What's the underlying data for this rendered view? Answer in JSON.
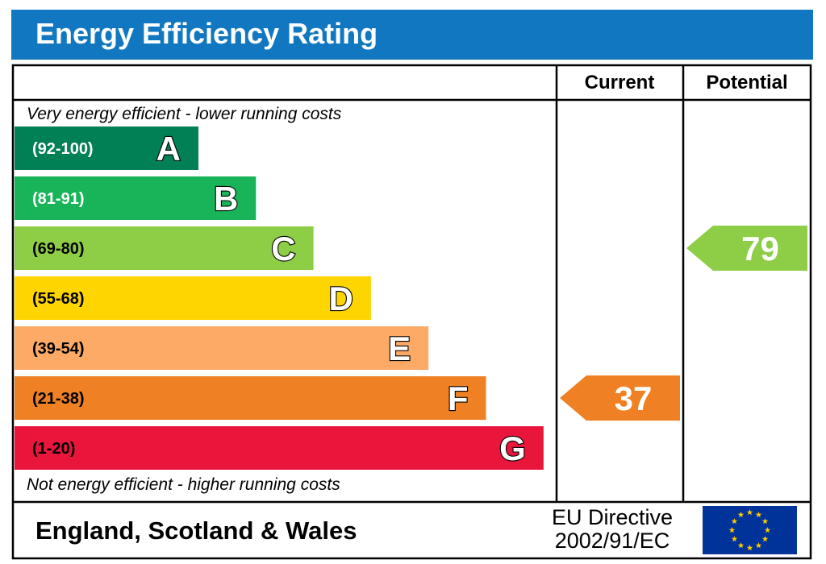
{
  "title": "Energy Efficiency Rating",
  "colors": {
    "header_bg": "#1077c0",
    "eu_flag_bg": "#003399",
    "eu_star": "#ffcc00"
  },
  "columns": {
    "current": "Current",
    "potential": "Potential"
  },
  "top_caption": "Very energy efficient - lower running costs",
  "bottom_caption": "Not energy efficient - higher running costs",
  "footer": {
    "region": "England, Scotland & Wales",
    "directive_line1": "EU Directive",
    "directive_line2": "2002/91/EC",
    "flag_icon": "eu-flag-icon"
  },
  "chart_data": {
    "type": "bar",
    "title": "Energy Efficiency Rating",
    "bands": [
      {
        "letter": "A",
        "range": "(92-100)",
        "min": 92,
        "max": 100,
        "color": "#008054",
        "range_text_color": "#ffffff"
      },
      {
        "letter": "B",
        "range": "(81-91)",
        "min": 81,
        "max": 91,
        "color": "#19b459",
        "range_text_color": "#ffffff"
      },
      {
        "letter": "C",
        "range": "(69-80)",
        "min": 69,
        "max": 80,
        "color": "#8dce46",
        "range_text_color": "#000000"
      },
      {
        "letter": "D",
        "range": "(55-68)",
        "min": 55,
        "max": 68,
        "color": "#ffd500",
        "range_text_color": "#000000"
      },
      {
        "letter": "E",
        "range": "(39-54)",
        "min": 39,
        "max": 54,
        "color": "#fcaa65",
        "range_text_color": "#000000"
      },
      {
        "letter": "F",
        "range": "(21-38)",
        "min": 21,
        "max": 38,
        "color": "#ef8023",
        "range_text_color": "#000000"
      },
      {
        "letter": "G",
        "range": "(1-20)",
        "min": 1,
        "max": 20,
        "color": "#e9153b",
        "range_text_color": "#000000"
      }
    ],
    "current": {
      "value": 37,
      "band": "F",
      "color": "#ef8023"
    },
    "potential": {
      "value": 79,
      "band": "C",
      "color": "#8dce46"
    }
  }
}
